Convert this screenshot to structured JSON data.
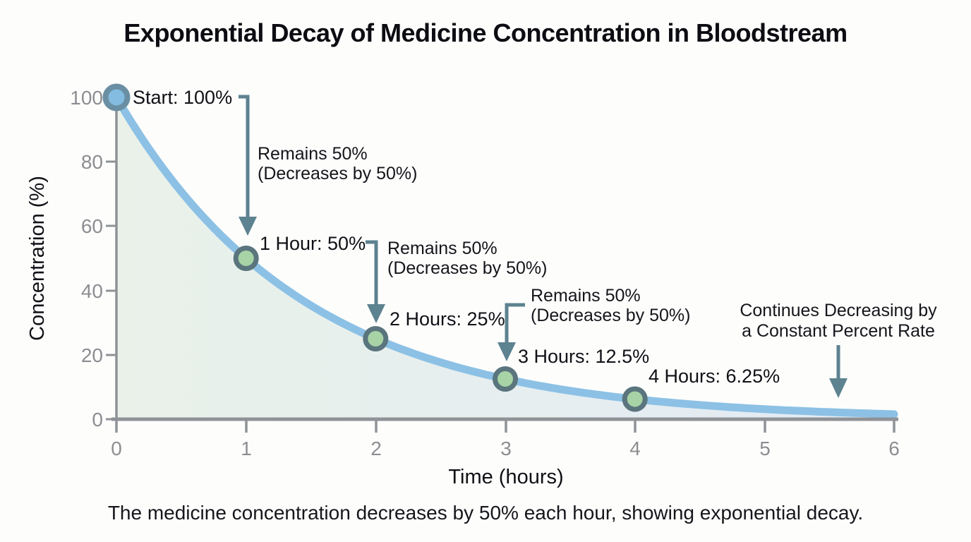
{
  "page": {
    "title": "Exponential Decay of Medicine Concentration in Bloodstream",
    "caption": "The medicine concentration decreases by 50% each hour, showing exponential decay."
  },
  "chart_data": {
    "type": "line",
    "title": "Exponential Decay of Medicine Concentration in Bloodstream",
    "xlabel": "Time (hours)",
    "ylabel": "Concentration (%)",
    "xlim": [
      0,
      6
    ],
    "ylim": [
      0,
      100
    ],
    "x_ticks": [
      0,
      1,
      2,
      3,
      4,
      5,
      6
    ],
    "y_ticks": [
      0,
      20,
      40,
      60,
      80,
      100
    ],
    "grid": false,
    "legend": false,
    "curve": {
      "initial_value": 100,
      "decay_factor": 0.5,
      "t_start": 0,
      "t_end": 6,
      "formula": "concentration = 100 * 0.5^t"
    },
    "points": [
      {
        "t": 0,
        "value": 100,
        "label": "Start: 100%"
      },
      {
        "t": 1,
        "value": 50,
        "label": "1 Hour: 50%"
      },
      {
        "t": 2,
        "value": 25,
        "label": "2 Hours: 25%"
      },
      {
        "t": 3,
        "value": 12.5,
        "label": "3 Hours: 12.5%"
      },
      {
        "t": 4,
        "value": 6.25,
        "label": "4 Hours: 6.25%"
      }
    ],
    "annotations": {
      "remains_1": {
        "line1": "Remains 50%",
        "line2": "(Decreases by 50%)"
      },
      "remains_2": {
        "line1": "Remains 50%",
        "line2": "(Decreases by 50%)"
      },
      "remains_3": {
        "line1": "Remains 50%",
        "line2": "(Decreases by 50%)"
      },
      "continues": {
        "line1": "Continues Decreasing by",
        "line2": "a Constant Percent Rate"
      }
    }
  },
  "colors": {
    "curve": "#8cc1e5",
    "area_left": "#e7f0e7",
    "area_right": "#dfe9f4",
    "start_marker_fill": "#83bce0",
    "start_marker_ring": "#6a8fa3",
    "point_marker_fill": "#a7d3a6",
    "point_marker_ring": "#5a757d",
    "arrow": "#5d8290",
    "axis": "#8f9296",
    "tick_text": "#8d8d92",
    "text": "#141419"
  }
}
